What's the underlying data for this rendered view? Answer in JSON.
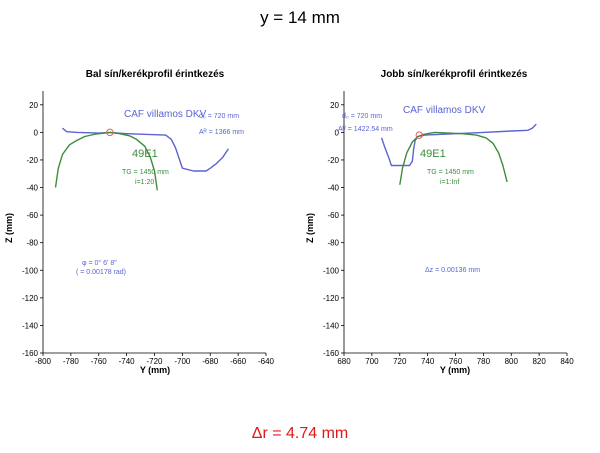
{
  "header": {
    "title": "y = 14 mm"
  },
  "footer": {
    "text": "Δr = 4.74 mm"
  },
  "colors": {
    "rail": "#3c8c3c",
    "wheel": "#5a64d2",
    "contact": "#e86060",
    "footer": "#e01818"
  },
  "chart_data": [
    {
      "type": "line",
      "title": "Bal sín/kerékprofil érintkezés",
      "xlabel": "Y (mm)",
      "ylabel": "Z (mm)",
      "xlim": [
        -800,
        -640
      ],
      "ylim": [
        -160,
        30
      ],
      "xticks": [
        -800,
        -780,
        -760,
        -740,
        -720,
        -700,
        -680,
        -660,
        -640
      ],
      "yticks": [
        20,
        0,
        -20,
        -40,
        -60,
        -80,
        -100,
        -120,
        -140,
        -160
      ],
      "grid": false,
      "series": [
        {
          "role": "wheel",
          "points": [
            [
              -786,
              3
            ],
            [
              -783,
              0.5
            ],
            [
              -775,
              0
            ],
            [
              -760,
              -0.5
            ],
            [
              -752,
              0
            ],
            [
              -740,
              -1
            ],
            [
              -725,
              -1.5
            ],
            [
              -712,
              -2
            ],
            [
              -708,
              -5
            ],
            [
              -705,
              -11
            ],
            [
              -702,
              -20
            ],
            [
              -700,
              -26
            ],
            [
              -692,
              -28
            ],
            [
              -683,
              -28
            ],
            [
              -680,
              -26
            ],
            [
              -676,
              -23
            ],
            [
              -671,
              -18
            ],
            [
              -667,
              -12
            ]
          ]
        },
        {
          "role": "rail",
          "points": [
            [
              -791,
              -40
            ],
            [
              -789,
              -26
            ],
            [
              -786,
              -16
            ],
            [
              -781,
              -9
            ],
            [
              -776,
              -6
            ],
            [
              -770,
              -3
            ],
            [
              -762,
              -1.2
            ],
            [
              -752,
              0
            ],
            [
              -745,
              -1
            ],
            [
              -738,
              -2.5
            ],
            [
              -733,
              -5
            ],
            [
              -727,
              -10
            ],
            [
              -723,
              -18
            ],
            [
              -720,
              -28
            ],
            [
              -718,
              -42
            ]
          ]
        }
      ],
      "contact_point": [
        -752,
        0
      ],
      "annotations": {
        "vehicle": "CAF villamos DKV",
        "d0": "d₀ = 720 mm",
        "AR": "Aᴿ = 1366 mm",
        "rail_name": "49E1",
        "TG": "TG = 1450 mm",
        "incl": "i=1:20",
        "angle1": "φ = 0° 6' 8\"",
        "angle2": "( = 0.00178 rad)"
      }
    },
    {
      "type": "line",
      "title": "Jobb sín/kerékprofil érintkezés",
      "xlabel": "Y (mm)",
      "ylabel": "Z (mm)",
      "xlim": [
        680,
        840
      ],
      "ylim": [
        -160,
        30
      ],
      "xticks": [
        680,
        700,
        720,
        740,
        760,
        780,
        800,
        820,
        840
      ],
      "yticks": [
        20,
        0,
        -20,
        -40,
        -60,
        -80,
        -100,
        -120,
        -140,
        -160
      ],
      "grid": false,
      "series": [
        {
          "role": "wheel",
          "points": [
            [
              707,
              -4
            ],
            [
              709,
              -10
            ],
            [
              712,
              -18
            ],
            [
              714,
              -24
            ],
            [
              720,
              -24
            ],
            [
              727,
              -24
            ],
            [
              729,
              -21
            ],
            [
              730,
              -12
            ],
            [
              731,
              -6
            ],
            [
              733,
              -3
            ],
            [
              738,
              -2
            ],
            [
              760,
              -1
            ],
            [
              780,
              0
            ],
            [
              800,
              1
            ],
            [
              812,
              1.5
            ],
            [
              815,
              3
            ],
            [
              818,
              6
            ]
          ]
        },
        {
          "role": "rail",
          "points": [
            [
              720,
              -38
            ],
            [
              722,
              -26
            ],
            [
              725,
              -15
            ],
            [
              729,
              -7
            ],
            [
              733,
              -3
            ],
            [
              737,
              -1.5
            ],
            [
              745,
              0
            ],
            [
              755,
              -0.5
            ],
            [
              765,
              -1
            ],
            [
              775,
              -2
            ],
            [
              782,
              -4
            ],
            [
              787,
              -8
            ],
            [
              791,
              -15
            ],
            [
              794,
              -24
            ],
            [
              797,
              -36
            ]
          ]
        }
      ],
      "contact_point": [
        734,
        -2
      ],
      "annotations": {
        "vehicle": "CAF villamos DKV",
        "d0": "d₀ = 720 mm",
        "AR": "Aᴿ = 1422.54 mm",
        "rail_name": "49E1",
        "TG": "TG = 1450 mm",
        "incl": "i=1:Inf",
        "dz": "Δz = 0.00136 mm"
      }
    }
  ]
}
